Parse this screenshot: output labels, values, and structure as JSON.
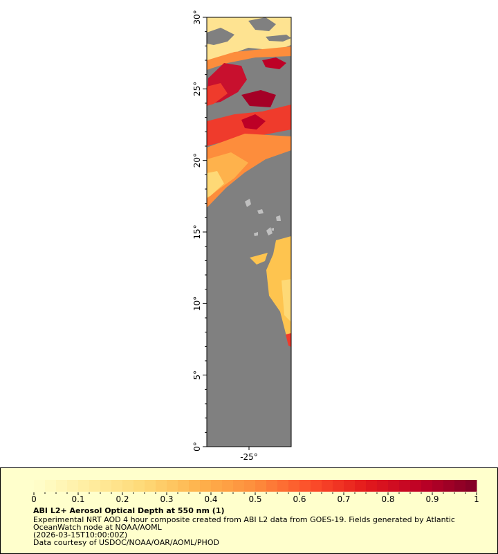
{
  "map": {
    "lat_ticks": [
      "0°",
      "5°",
      "10°",
      "15°",
      "20°",
      "25°",
      "30°"
    ],
    "lat_values": [
      0,
      5,
      10,
      15,
      20,
      25,
      30
    ],
    "lon_ticks": [
      "-25°"
    ],
    "lon_values": [
      -25
    ],
    "lat_range": [
      0,
      30
    ],
    "ocean_nodata_color": "#808080",
    "land_color": "#c0c0c0"
  },
  "legend": {
    "colorbar_ticks": [
      "0",
      "0.1",
      "0.2",
      "0.3",
      "0.4",
      "0.5",
      "0.6",
      "0.7",
      "0.8",
      "0.9",
      "1"
    ],
    "colorbar_range": [
      0,
      1
    ],
    "colormap": [
      "#ffffcc",
      "#ffeda0",
      "#fed976",
      "#feb24c",
      "#fd8d3c",
      "#fc4e2a",
      "#e31a1c",
      "#bd0026",
      "#800026"
    ],
    "title": "ABI L2+ Aerosol Optical Depth at 550 nm (1)",
    "line1": "Experimental NRT AOD 4 hour composite created from ABI L2 data from GOES-19. Fields generated by Atlantic",
    "line2": "OceanWatch node at NOAA/AOML",
    "line3": "(2026-03-15T10:00:00Z)",
    "line4": "Data courtesy of USDOC/NOAA/OAR/AOML/PHOD"
  }
}
